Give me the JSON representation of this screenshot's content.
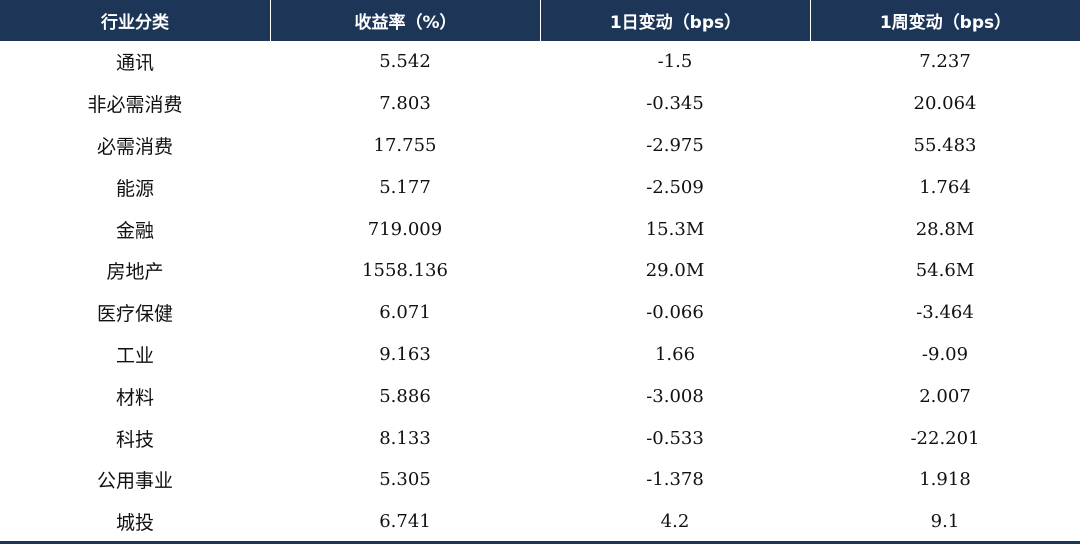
{
  "table": {
    "headers": [
      "行业分类",
      "收益率（%）",
      "1日变动（bps）",
      "1周变动（bps）"
    ],
    "rows": [
      {
        "sector": "通讯",
        "yield": "5.542",
        "d1": "-1.5",
        "w1": "7.237"
      },
      {
        "sector": "非必需消费",
        "yield": "7.803",
        "d1": "-0.345",
        "w1": "20.064"
      },
      {
        "sector": "必需消费",
        "yield": "17.755",
        "d1": "-2.975",
        "w1": "55.483"
      },
      {
        "sector": "能源",
        "yield": "5.177",
        "d1": "-2.509",
        "w1": "1.764"
      },
      {
        "sector": "金融",
        "yield": "719.009",
        "d1": "15.3M",
        "w1": "28.8M"
      },
      {
        "sector": "房地产",
        "yield": "1558.136",
        "d1": "29.0M",
        "w1": "54.6M"
      },
      {
        "sector": "医疗保健",
        "yield": "6.071",
        "d1": "-0.066",
        "w1": "-3.464"
      },
      {
        "sector": "工业",
        "yield": "9.163",
        "d1": "1.66",
        "w1": "-9.09"
      },
      {
        "sector": "材料",
        "yield": "5.886",
        "d1": "-3.008",
        "w1": "2.007"
      },
      {
        "sector": "科技",
        "yield": "8.133",
        "d1": "-0.533",
        "w1": "-22.201"
      },
      {
        "sector": "公用事业",
        "yield": "5.305",
        "d1": "-1.378",
        "w1": "1.918"
      },
      {
        "sector": "城投",
        "yield": "6.741",
        "d1": "4.2",
        "w1": "9.1"
      }
    ]
  },
  "colors": {
    "header_bg": "#1d3557",
    "header_text": "#ffffff",
    "body_text": "#111111"
  }
}
